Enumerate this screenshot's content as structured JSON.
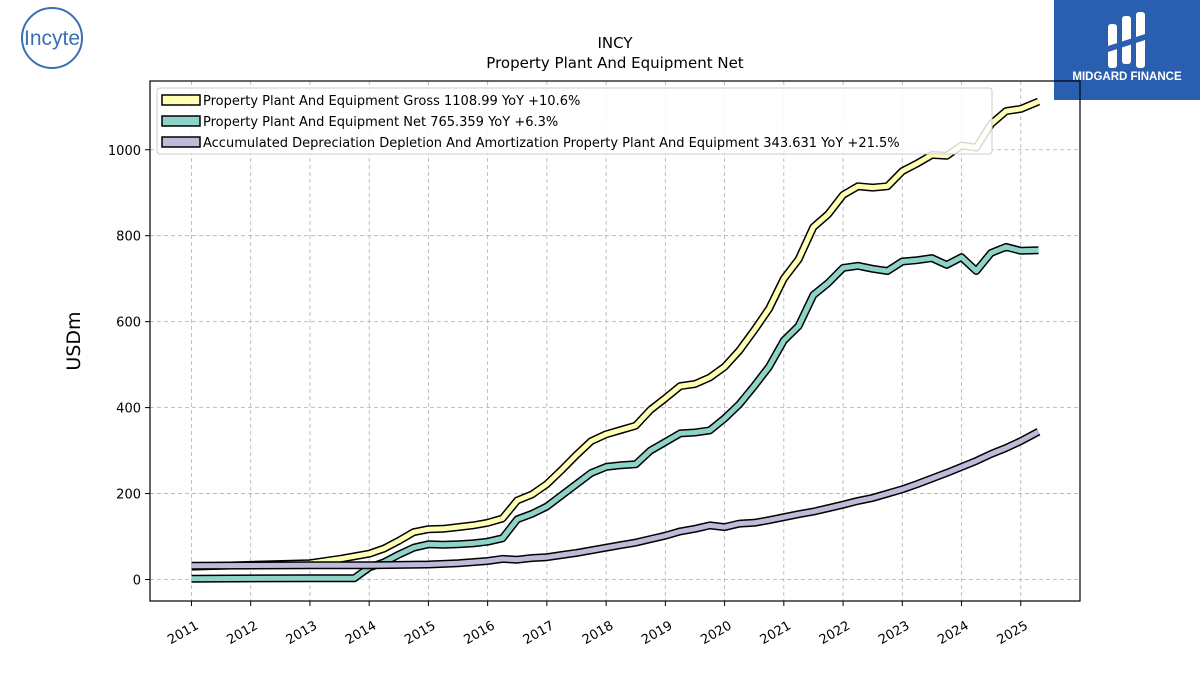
{
  "logos": {
    "company": "Incyte",
    "brand": "MIDGARD FINANCE"
  },
  "colors": {
    "incyte_blue": "#3a6fb5",
    "midgard_bg": "#2a5fb0",
    "gross": "#ffffb3",
    "net": "#8dd3c7",
    "depreciation": "#bebada",
    "grid": "#b0b0b0"
  },
  "chart_data": {
    "type": "line",
    "title": "INCY",
    "subtitle": "Property Plant And Equipment Net",
    "xlabel": "",
    "ylabel": "USDm",
    "xlim": [
      2010.3,
      2026.0
    ],
    "ylim": [
      -50,
      1160
    ],
    "yticks": [
      0,
      200,
      400,
      600,
      800,
      1000
    ],
    "xticks": [
      "2011",
      "2012",
      "2013",
      "2014",
      "2015",
      "2016",
      "2017",
      "2018",
      "2019",
      "2020",
      "2021",
      "2022",
      "2023",
      "2024",
      "2025"
    ],
    "grid": true,
    "legend_position": "top-left",
    "series": [
      {
        "name": "Property Plant And Equipment Gross  1108.99 YoY +10.6%",
        "color": "#ffffb3",
        "x": [
          2011.0,
          2013.0,
          2013.5,
          2014.0,
          2014.25,
          2014.5,
          2014.75,
          2015.0,
          2015.25,
          2015.5,
          2015.75,
          2016.0,
          2016.25,
          2016.5,
          2016.75,
          2017.0,
          2017.25,
          2017.5,
          2017.75,
          2018.0,
          2018.25,
          2018.5,
          2018.75,
          2019.0,
          2019.25,
          2019.5,
          2019.75,
          2020.0,
          2020.25,
          2020.5,
          2020.75,
          2021.0,
          2021.25,
          2021.5,
          2021.75,
          2022.0,
          2022.25,
          2022.5,
          2022.75,
          2023.0,
          2023.25,
          2023.5,
          2023.75,
          2024.0,
          2024.25,
          2024.5,
          2024.75,
          2025.0,
          2025.3
        ],
        "y": [
          30,
          38,
          48,
          60,
          72,
          90,
          110,
          117,
          118,
          122,
          126,
          132,
          142,
          184,
          198,
          222,
          255,
          290,
          322,
          338,
          348,
          358,
          395,
          422,
          450,
          455,
          470,
          495,
          533,
          580,
          630,
          700,
          745,
          820,
          850,
          895,
          915,
          912,
          915,
          950,
          968,
          988,
          986,
          1010,
          1005,
          1060,
          1090,
          1095,
          1112
        ]
      },
      {
        "name": "Property Plant And Equipment Net  765.359 YoY +6.3%",
        "color": "#8dd3c7",
        "x": [
          2011.0,
          2013.0,
          2013.75,
          2014.0,
          2014.25,
          2014.5,
          2014.75,
          2015.0,
          2015.25,
          2015.5,
          2015.75,
          2016.0,
          2016.25,
          2016.5,
          2016.75,
          2017.0,
          2017.25,
          2017.5,
          2017.75,
          2018.0,
          2018.25,
          2018.5,
          2018.75,
          2019.0,
          2019.25,
          2019.5,
          2019.75,
          2020.0,
          2020.25,
          2020.5,
          2020.75,
          2021.0,
          2021.25,
          2021.5,
          2021.75,
          2022.0,
          2022.25,
          2022.5,
          2022.75,
          2023.0,
          2023.25,
          2023.5,
          2023.75,
          2024.0,
          2024.25,
          2024.5,
          2024.75,
          2025.0,
          2025.3
        ],
        "y": [
          2,
          3,
          3,
          28,
          40,
          58,
          74,
          82,
          81,
          82,
          84,
          88,
          96,
          140,
          153,
          170,
          196,
          222,
          248,
          262,
          266,
          268,
          300,
          320,
          340,
          342,
          347,
          375,
          408,
          450,
          495,
          556,
          590,
          662,
          690,
          725,
          730,
          723,
          718,
          740,
          743,
          748,
          732,
          750,
          718,
          760,
          774,
          765,
          766
        ]
      },
      {
        "name": "Accumulated Depreciation Depletion And Amortization Property Plant And Equipment  343.631 YoY +21.5%",
        "color": "#bebada",
        "x": [
          2011.0,
          2013.0,
          2014.0,
          2015.0,
          2015.5,
          2016.0,
          2016.25,
          2016.5,
          2016.75,
          2017.0,
          2017.25,
          2017.5,
          2017.75,
          2018.0,
          2018.25,
          2018.5,
          2018.75,
          2019.0,
          2019.25,
          2019.5,
          2019.75,
          2020.0,
          2020.25,
          2020.5,
          2020.75,
          2021.0,
          2021.25,
          2021.5,
          2021.75,
          2022.0,
          2022.25,
          2022.5,
          2022.75,
          2023.0,
          2023.25,
          2023.5,
          2023.75,
          2024.0,
          2024.25,
          2024.5,
          2024.75,
          2025.0,
          2025.3
        ],
        "y": [
          32,
          33,
          33,
          35,
          38,
          43,
          48,
          46,
          50,
          52,
          57,
          62,
          68,
          74,
          80,
          86,
          94,
          102,
          112,
          118,
          126,
          122,
          130,
          132,
          138,
          145,
          152,
          158,
          166,
          174,
          183,
          190,
          200,
          210,
          222,
          235,
          248,
          262,
          276,
          292,
          306,
          322,
          344
        ]
      }
    ]
  }
}
